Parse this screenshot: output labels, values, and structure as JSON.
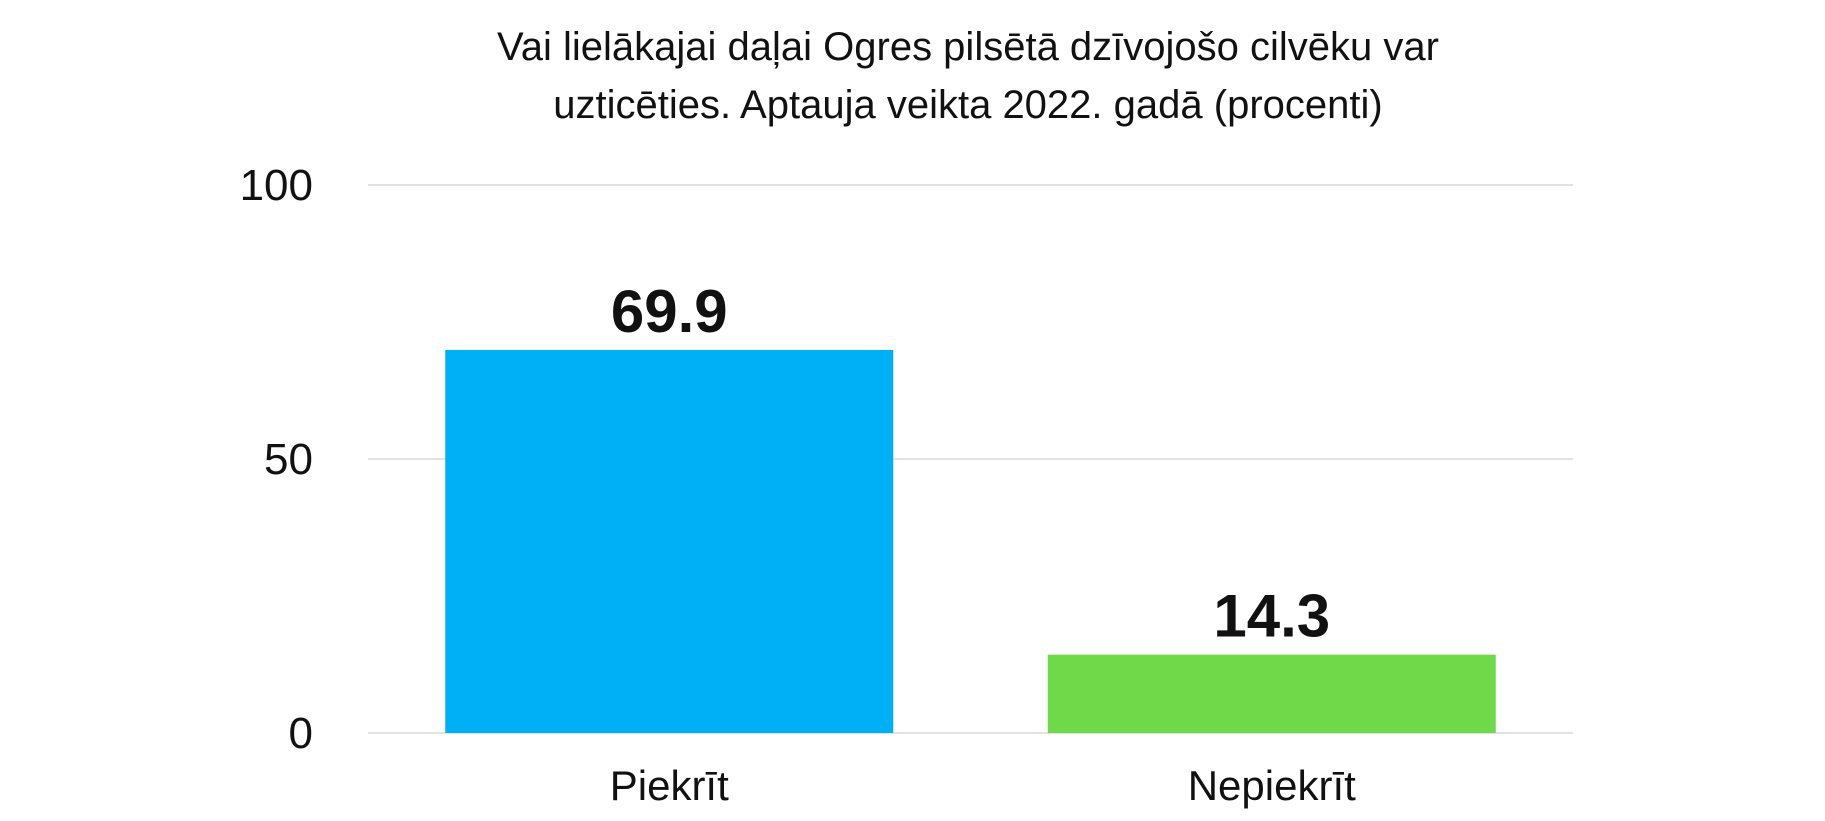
{
  "chart_data": {
    "type": "bar",
    "title_lines": [
      "Vai lielākajai daļai Ogres pilsētā dzīvojošo cilvēku var",
      "uzticēties. Aptauja veikta 2022. gadā (procenti)"
    ],
    "xlabel": "",
    "ylabel": "",
    "categories": [
      "Piekrīt",
      "Nepiekrīt"
    ],
    "values": [
      69.9,
      14.3
    ],
    "value_labels": [
      "69.9",
      "14.3"
    ],
    "colors": [
      "#00b0f6",
      "#6fd94a"
    ],
    "ylim": [
      0,
      100
    ],
    "yticks": [
      0,
      50,
      100
    ],
    "ytick_labels": [
      "0",
      "50",
      "100"
    ],
    "grid": true,
    "legend": "none"
  }
}
